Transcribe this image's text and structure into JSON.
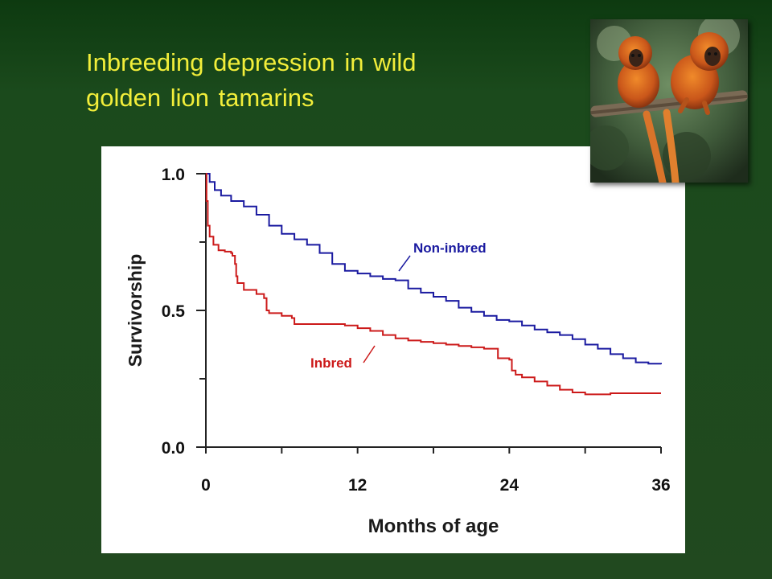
{
  "slide": {
    "title_line1": "Inbreeding depression in wild",
    "title_line2": "golden lion tamarins"
  },
  "photo": {
    "subject": "golden lion tamarins"
  },
  "colors": {
    "title": "#f2ee3a",
    "noninbred": "#1a1aa0",
    "inbred": "#cc1a1a"
  },
  "chart_data": {
    "type": "line",
    "title": "",
    "xlabel": "Months of age",
    "ylabel": "Survivorship",
    "xlim": [
      0,
      36
    ],
    "ylim": [
      0,
      1
    ],
    "xticks": [
      "0",
      "12",
      "24",
      "36"
    ],
    "yticks": [
      "0.0",
      "0.5",
      "1.0"
    ],
    "series": [
      {
        "name": "Non-inbred",
        "color": "#1a1aa0",
        "points": [
          [
            0,
            1.0
          ],
          [
            0.3,
            0.97
          ],
          [
            0.7,
            0.94
          ],
          [
            1.2,
            0.92
          ],
          [
            2,
            0.9
          ],
          [
            3,
            0.88
          ],
          [
            4,
            0.85
          ],
          [
            5,
            0.81
          ],
          [
            6,
            0.78
          ],
          [
            7,
            0.76
          ],
          [
            8,
            0.74
          ],
          [
            9,
            0.71
          ],
          [
            10,
            0.67
          ],
          [
            11,
            0.645
          ],
          [
            12,
            0.635
          ],
          [
            13,
            0.625
          ],
          [
            14,
            0.615
          ],
          [
            15,
            0.61
          ],
          [
            16,
            0.58
          ],
          [
            17,
            0.565
          ],
          [
            18,
            0.55
          ],
          [
            19,
            0.535
          ],
          [
            20,
            0.51
          ],
          [
            21,
            0.495
          ],
          [
            22,
            0.48
          ],
          [
            23,
            0.465
          ],
          [
            24,
            0.46
          ],
          [
            25,
            0.445
          ],
          [
            26,
            0.43
          ],
          [
            27,
            0.42
          ],
          [
            28,
            0.41
          ],
          [
            29,
            0.395
          ],
          [
            30,
            0.375
          ],
          [
            31,
            0.36
          ],
          [
            32,
            0.34
          ],
          [
            33,
            0.325
          ],
          [
            34,
            0.31
          ],
          [
            35,
            0.305
          ],
          [
            36,
            0.303
          ]
        ]
      },
      {
        "name": "Inbred",
        "color": "#cc1a1a",
        "points": [
          [
            0,
            1.0
          ],
          [
            0.05,
            0.9
          ],
          [
            0.15,
            0.81
          ],
          [
            0.3,
            0.77
          ],
          [
            0.6,
            0.74
          ],
          [
            1,
            0.72
          ],
          [
            1.5,
            0.715
          ],
          [
            2,
            0.71
          ],
          [
            2.1,
            0.7
          ],
          [
            2.3,
            0.67
          ],
          [
            2.4,
            0.625
          ],
          [
            2.5,
            0.6
          ],
          [
            3,
            0.575
          ],
          [
            4,
            0.56
          ],
          [
            4.6,
            0.545
          ],
          [
            4.8,
            0.5
          ],
          [
            5,
            0.49
          ],
          [
            6,
            0.48
          ],
          [
            6.8,
            0.472
          ],
          [
            7,
            0.45
          ],
          [
            8,
            0.45
          ],
          [
            10,
            0.45
          ],
          [
            11,
            0.445
          ],
          [
            12,
            0.435
          ],
          [
            13,
            0.425
          ],
          [
            14,
            0.41
          ],
          [
            15,
            0.398
          ],
          [
            16,
            0.39
          ],
          [
            17,
            0.385
          ],
          [
            18,
            0.38
          ],
          [
            19,
            0.375
          ],
          [
            20,
            0.37
          ],
          [
            21,
            0.365
          ],
          [
            22,
            0.36
          ],
          [
            23,
            0.36
          ],
          [
            23.1,
            0.325
          ],
          [
            24,
            0.32
          ],
          [
            24.2,
            0.28
          ],
          [
            24.5,
            0.265
          ],
          [
            25,
            0.255
          ],
          [
            26,
            0.24
          ],
          [
            27,
            0.225
          ],
          [
            28,
            0.21
          ],
          [
            29,
            0.2
          ],
          [
            30,
            0.193
          ],
          [
            31,
            0.193
          ],
          [
            32,
            0.197
          ],
          [
            34,
            0.197
          ],
          [
            36,
            0.197
          ]
        ]
      }
    ],
    "annotations": [
      {
        "text": "Non-inbred",
        "series": "Non-inbred"
      },
      {
        "text": "Inbred",
        "series": "Inbred"
      }
    ]
  }
}
